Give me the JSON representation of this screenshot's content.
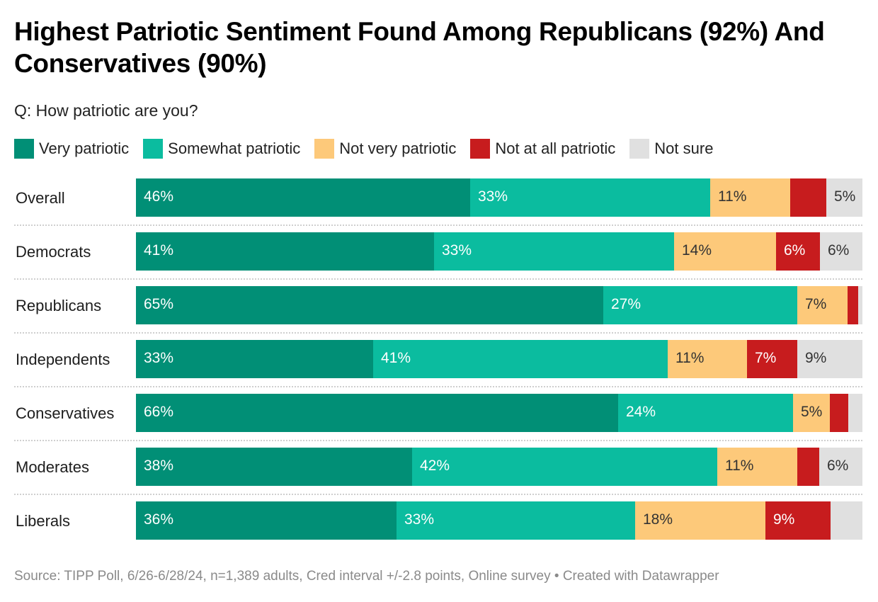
{
  "chart_data": {
    "type": "bar",
    "orientation": "horizontal",
    "stacked": true,
    "title": "Highest Patriotic Sentiment Found Among Republicans (92%) And Conservatives (90%)",
    "subtitle": "Q: How patriotic are you?",
    "xlabel": "",
    "ylabel": "",
    "xlim": [
      0,
      100
    ],
    "legend_position": "top",
    "categories": [
      "Overall",
      "Democrats",
      "Republicans",
      "Independents",
      "Conservatives",
      "Moderates",
      "Liberals"
    ],
    "series": [
      {
        "name": "Very patriotic",
        "color": "#018f76",
        "label_color": "#ffffff",
        "values": [
          46,
          41,
          65,
          33,
          66,
          38,
          36
        ],
        "labels": [
          "46%",
          "41%",
          "65%",
          "33%",
          "66%",
          "38%",
          "36%"
        ]
      },
      {
        "name": "Somewhat patriotic",
        "color": "#0bbc9f",
        "label_color": "#ffffff",
        "values": [
          33,
          33,
          27,
          41,
          24,
          42,
          33
        ],
        "labels": [
          "33%",
          "33%",
          "27%",
          "41%",
          "24%",
          "42%",
          "33%"
        ]
      },
      {
        "name": "Not very patriotic",
        "color": "#fdc97a",
        "label_color": "#333333",
        "values": [
          11,
          14,
          7,
          11,
          5,
          11,
          18
        ],
        "labels": [
          "11%",
          "14%",
          "7%",
          "11%",
          "5%",
          "11%",
          "18%"
        ]
      },
      {
        "name": "Not at all patriotic",
        "color": "#c71c1e",
        "label_color": "#ffffff",
        "values": [
          5,
          6,
          1.5,
          7,
          2.5,
          3,
          9
        ],
        "labels": [
          "",
          "6%",
          "",
          "7%",
          "",
          "",
          "9%"
        ]
      },
      {
        "name": "Not sure",
        "color": "#e0e0e0",
        "label_color": "#333333",
        "values": [
          5,
          6,
          0.5,
          9,
          2,
          6,
          4.5
        ],
        "labels": [
          "5%",
          "6%",
          "",
          "9%",
          "",
          "6%",
          ""
        ]
      }
    ]
  },
  "footer": {
    "source": "Source: TIPP Poll, 6/26-6/28/24, n=1,389 adults, Cred interval +/-2.8 points, Online survey • Created with Datawrapper"
  }
}
